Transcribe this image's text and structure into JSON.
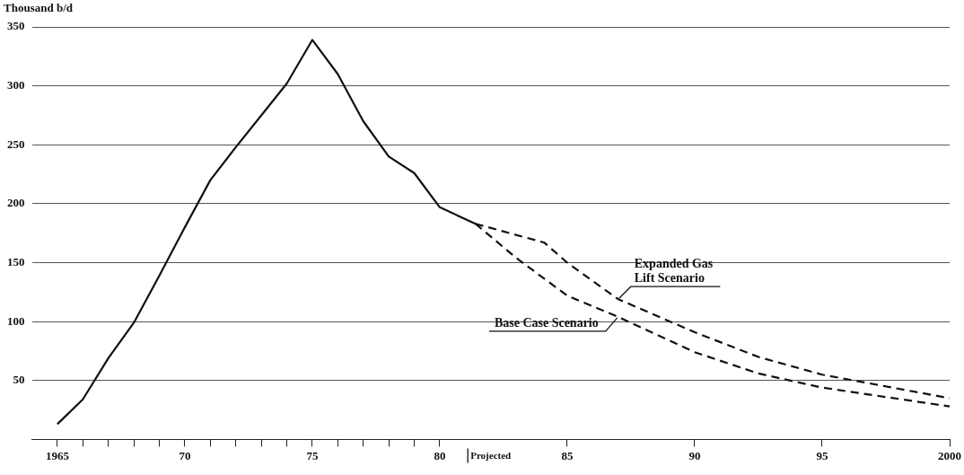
{
  "chart_data": {
    "type": "line",
    "ylabel": "Thousand b/d",
    "xlim": [
      1964,
      2000
    ],
    "xticks": [
      {
        "value": 1965,
        "label": "1965"
      },
      {
        "value": 1966,
        "label": null
      },
      {
        "value": 1967,
        "label": null
      },
      {
        "value": 1968,
        "label": null
      },
      {
        "value": 1969,
        "label": null
      },
      {
        "value": 1970,
        "label": "70"
      },
      {
        "value": 1971,
        "label": null
      },
      {
        "value": 1972,
        "label": null
      },
      {
        "value": 1973,
        "label": null
      },
      {
        "value": 1974,
        "label": null
      },
      {
        "value": 1975,
        "label": "75"
      },
      {
        "value": 1976,
        "label": null
      },
      {
        "value": 1977,
        "label": null
      },
      {
        "value": 1978,
        "label": null
      },
      {
        "value": 1979,
        "label": null
      },
      {
        "value": 1980,
        "label": "80"
      },
      {
        "value": 1985,
        "label": "85"
      },
      {
        "value": 1990,
        "label": "90"
      },
      {
        "value": 1995,
        "label": "95"
      },
      {
        "value": 2000,
        "label": "2000"
      }
    ],
    "ylim": [
      0,
      350
    ],
    "yticks": [
      50,
      100,
      150,
      200,
      250,
      300,
      350
    ],
    "grid": "y",
    "legend": false,
    "marker": "none",
    "series": [
      {
        "color": "#111111",
        "line_style": "solid",
        "x": [
          1965,
          1966,
          1967,
          1968,
          1969,
          1970,
          1971,
          1972,
          1973,
          1974,
          1975,
          1976,
          1977,
          1978,
          1979,
          1980,
          1981.4
        ],
        "values": [
          13,
          34,
          69,
          99,
          139,
          180,
          220,
          248,
          275,
          302,
          339,
          310,
          270,
          240,
          226,
          197,
          183
        ]
      },
      {
        "name": "Expanded Gas Lift Scenario",
        "color": "#111111",
        "line_style": "dashed",
        "x": [
          1981.4,
          1984.1,
          1985,
          1987,
          1990,
          1992.5,
          1995,
          2000
        ],
        "values": [
          183,
          167,
          150,
          119,
          91,
          70,
          55,
          35
        ]
      },
      {
        "name": "Base Case Scenario",
        "color": "#111111",
        "line_style": "dashed",
        "x": [
          1981.4,
          1983,
          1985,
          1987,
          1990,
          1992.5,
          1995,
          2000
        ],
        "values": [
          183,
          154,
          122,
          104,
          74,
          56,
          44,
          28
        ]
      }
    ],
    "ref_lines": [
      {
        "axis": "x",
        "value": 1981.1,
        "label": "Projected"
      }
    ]
  }
}
